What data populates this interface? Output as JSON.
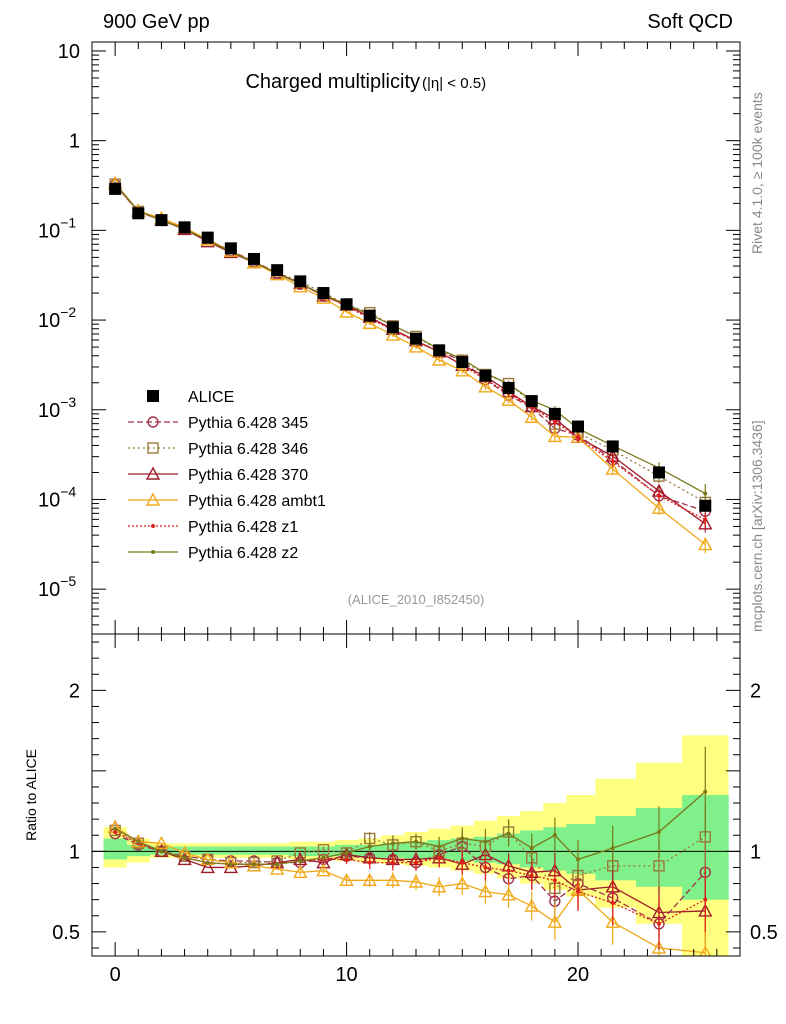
{
  "header": {
    "left": "900 GeV pp",
    "right": "Soft QCD",
    "side_top": "Rivet 4.1.0, ≥ 100k events",
    "side_bottom": "mcplots.cern.ch [arXiv:1306.3436]"
  },
  "chart_data": {
    "type": "line",
    "title_main": "Charged multiplicity",
    "title_sub": "(|η| < 0.5)",
    "analysis_tag": "(ALICE_2010_I852450)",
    "ylabel_ratio": "Ratio to ALICE",
    "xlim": [
      -1,
      27
    ],
    "ylim_main_log": [
      -5.5,
      1.1
    ],
    "ylim_ratio": [
      0.35,
      2.35
    ],
    "x_ticks": [
      0,
      10,
      20
    ],
    "y_ticks_main": [
      {
        "value": 10,
        "base": "10",
        "exp": ""
      },
      {
        "value": 1,
        "base": "1",
        "exp": ""
      },
      {
        "value": 0.1,
        "base": "10",
        "exp": "−1"
      },
      {
        "value": 0.01,
        "base": "10",
        "exp": "−2"
      },
      {
        "value": 0.001,
        "base": "10",
        "exp": "−3"
      },
      {
        "value": 0.0001,
        "base": "10",
        "exp": "−4"
      },
      {
        "value": 1e-05,
        "base": "10",
        "exp": "−5"
      }
    ],
    "y_ticks_ratio": [
      {
        "value": 2,
        "label": "2"
      },
      {
        "value": 1,
        "label": "1"
      },
      {
        "value": 0.5,
        "label": "0.5"
      }
    ],
    "x": [
      0,
      1,
      2,
      3,
      4,
      5,
      6,
      7,
      8,
      9,
      10,
      11,
      12,
      13,
      14,
      15,
      16,
      17,
      18,
      19,
      20,
      21.5,
      23.5,
      25.5
    ],
    "data": {
      "name": "ALICE",
      "values": [
        0.29,
        0.155,
        0.13,
        0.108,
        0.083,
        0.063,
        0.048,
        0.036,
        0.027,
        0.02,
        0.015,
        0.0112,
        0.0083,
        0.0062,
        0.0046,
        0.0034,
        0.0024,
        0.00175,
        0.00125,
        0.0009,
        0.00065,
        0.00039,
        0.0002,
        8.5e-05
      ]
    },
    "band_yellow": [
      [
        0.9,
        1.15
      ],
      [
        0.93,
        1.08
      ],
      [
        0.96,
        1.05
      ],
      [
        0.96,
        1.05
      ],
      [
        0.96,
        1.05
      ],
      [
        0.96,
        1.05
      ],
      [
        0.96,
        1.05
      ],
      [
        0.96,
        1.05
      ],
      [
        0.95,
        1.06
      ],
      [
        0.95,
        1.06
      ],
      [
        0.94,
        1.07
      ],
      [
        0.93,
        1.08
      ],
      [
        0.92,
        1.1
      ],
      [
        0.91,
        1.12
      ],
      [
        0.9,
        1.14
      ],
      [
        0.88,
        1.16
      ],
      [
        0.86,
        1.19
      ],
      [
        0.83,
        1.22
      ],
      [
        0.8,
        1.25
      ],
      [
        0.76,
        1.3
      ],
      [
        0.72,
        1.35
      ],
      [
        0.65,
        1.45
      ],
      [
        0.55,
        1.55
      ],
      [
        0.35,
        1.72
      ]
    ],
    "band_green": [
      [
        0.95,
        1.08
      ],
      [
        0.97,
        1.04
      ],
      [
        0.98,
        1.03
      ],
      [
        0.98,
        1.03
      ],
      [
        0.98,
        1.03
      ],
      [
        0.98,
        1.03
      ],
      [
        0.98,
        1.03
      ],
      [
        0.98,
        1.03
      ],
      [
        0.97,
        1.03
      ],
      [
        0.97,
        1.03
      ],
      [
        0.97,
        1.04
      ],
      [
        0.96,
        1.04
      ],
      [
        0.96,
        1.05
      ],
      [
        0.95,
        1.06
      ],
      [
        0.95,
        1.07
      ],
      [
        0.94,
        1.08
      ],
      [
        0.93,
        1.09
      ],
      [
        0.92,
        1.11
      ],
      [
        0.9,
        1.13
      ],
      [
        0.88,
        1.15
      ],
      [
        0.86,
        1.17
      ],
      [
        0.82,
        1.22
      ],
      [
        0.78,
        1.27
      ],
      [
        0.7,
        1.35
      ]
    ],
    "series": [
      {
        "name": "Pythia 6.428 345",
        "color": "#a0304a",
        "dash": "6,3",
        "marker": "circle",
        "ratio": [
          1.11,
          1.04,
          1.0,
          0.97,
          0.95,
          0.94,
          0.94,
          0.93,
          0.93,
          0.95,
          0.97,
          0.96,
          0.95,
          0.93,
          0.98,
          1.03,
          0.9,
          0.83,
          0.85,
          0.69,
          0.8,
          0.71,
          0.55,
          0.87
        ],
        "err": [
          0.01,
          0.01,
          0.01,
          0.01,
          0.01,
          0.01,
          0.01,
          0.01,
          0.02,
          0.02,
          0.03,
          0.04,
          0.05,
          0.05,
          0.06,
          0.07,
          0.08,
          0.08,
          0.09,
          0.11,
          0.12,
          0.14,
          0.16,
          0.2
        ]
      },
      {
        "name": "Pythia 6.428 346",
        "color": "#9a7a3a",
        "dash": "2,3",
        "marker": "square",
        "ratio": [
          1.13,
          1.05,
          1.0,
          0.97,
          0.95,
          0.93,
          0.93,
          0.94,
          0.99,
          1.01,
          0.99,
          1.08,
          1.04,
          1.06,
          1.0,
          1.05,
          1.03,
          1.12,
          0.96,
          0.77,
          0.85,
          0.91,
          0.91,
          1.09
        ],
        "err": [
          0.01,
          0.01,
          0.01,
          0.01,
          0.01,
          0.01,
          0.01,
          0.01,
          0.02,
          0.02,
          0.03,
          0.04,
          0.05,
          0.05,
          0.06,
          0.07,
          0.08,
          0.08,
          0.09,
          0.11,
          0.12,
          0.14,
          0.16,
          0.2
        ]
      },
      {
        "name": "Pythia 6.428 370",
        "color": "#a01c2c",
        "dash": "",
        "marker": "triangle",
        "ratio": [
          1.15,
          1.06,
          1.0,
          0.95,
          0.9,
          0.9,
          0.91,
          0.93,
          0.95,
          0.93,
          0.98,
          0.96,
          0.95,
          0.95,
          0.96,
          0.92,
          0.98,
          0.91,
          0.87,
          0.88,
          0.76,
          0.78,
          0.62,
          0.63
        ],
        "err": [
          0.01,
          0.01,
          0.01,
          0.01,
          0.01,
          0.01,
          0.01,
          0.01,
          0.02,
          0.02,
          0.03,
          0.04,
          0.05,
          0.05,
          0.06,
          0.07,
          0.08,
          0.08,
          0.09,
          0.11,
          0.12,
          0.14,
          0.16,
          0.2
        ]
      },
      {
        "name": "Pythia 6.428 ambt1",
        "color": "#f0a818",
        "dash": "",
        "marker": "triangle",
        "ratio": [
          1.15,
          1.06,
          1.05,
          0.99,
          0.95,
          0.93,
          0.91,
          0.89,
          0.87,
          0.88,
          0.82,
          0.82,
          0.82,
          0.81,
          0.78,
          0.8,
          0.75,
          0.73,
          0.66,
          0.56,
          0.76,
          0.56,
          0.4,
          0.37
        ],
        "err": [
          0.01,
          0.01,
          0.01,
          0.01,
          0.01,
          0.01,
          0.01,
          0.01,
          0.02,
          0.02,
          0.03,
          0.04,
          0.05,
          0.05,
          0.06,
          0.07,
          0.08,
          0.08,
          0.09,
          0.11,
          0.12,
          0.14,
          0.16,
          0.2
        ]
      },
      {
        "name": "Pythia 6.428 z1",
        "color": "#e0201a",
        "dash": "2,2",
        "marker": "dot",
        "ratio": [
          1.12,
          1.05,
          1.0,
          0.96,
          0.93,
          0.92,
          0.92,
          0.92,
          0.94,
          0.95,
          0.95,
          0.93,
          0.93,
          0.93,
          0.96,
          0.93,
          0.9,
          0.88,
          0.85,
          0.82,
          0.75,
          0.68,
          0.55,
          0.7
        ],
        "err": [
          0.01,
          0.01,
          0.01,
          0.01,
          0.01,
          0.01,
          0.01,
          0.01,
          0.02,
          0.02,
          0.03,
          0.04,
          0.05,
          0.05,
          0.06,
          0.07,
          0.08,
          0.08,
          0.09,
          0.11,
          0.12,
          0.14,
          0.16,
          0.2
        ]
      },
      {
        "name": "Pythia 6.428 z2",
        "color": "#7a7a1a",
        "dash": "",
        "marker": "dot",
        "ratio": [
          1.14,
          1.06,
          1.0,
          0.96,
          0.93,
          0.92,
          0.92,
          0.92,
          0.94,
          0.96,
          0.99,
          1.03,
          1.05,
          1.06,
          1.03,
          1.08,
          1.06,
          1.11,
          1.02,
          1.1,
          0.95,
          1.02,
          1.12,
          1.37
        ],
        "err": [
          0.01,
          0.01,
          0.01,
          0.01,
          0.01,
          0.01,
          0.01,
          0.01,
          0.02,
          0.02,
          0.03,
          0.04,
          0.05,
          0.05,
          0.06,
          0.07,
          0.08,
          0.08,
          0.09,
          0.11,
          0.12,
          0.14,
          0.16,
          0.28
        ]
      }
    ]
  }
}
